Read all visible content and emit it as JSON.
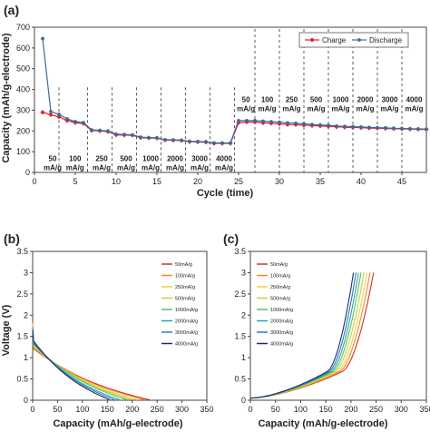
{
  "panels": {
    "a": {
      "label": "(a)"
    },
    "b": {
      "label": "(b)"
    },
    "c": {
      "label": "(c)"
    }
  },
  "chart_data": [
    {
      "id": "a",
      "type": "line",
      "xlabel": "Cycle (time)",
      "ylabel": "Capacity (mAh/g-electrode)",
      "xlim": [
        0,
        48
      ],
      "ylim": [
        0,
        700
      ],
      "xticks": [
        "0",
        "5",
        "10",
        "15",
        "20",
        "25",
        "30",
        "35",
        "40",
        "45"
      ],
      "yticks": [
        "0",
        "100",
        "200",
        "300",
        "400",
        "500",
        "600",
        "700"
      ],
      "legend_position": "top-right",
      "colors": {
        "charge": "#e0202a",
        "discharge": "#3c6a9a"
      },
      "dividers": [
        3,
        6.5,
        9.5,
        12.5,
        15.5,
        18.5,
        21.5,
        24.5,
        27,
        30,
        33,
        36,
        39,
        42,
        45
      ],
      "rate_labels_low": [
        "50",
        "mA/g",
        "100",
        "mA/g",
        "250",
        "mA/g",
        "500",
        "mA/g",
        "1000",
        "mA/g",
        "2000",
        "mA/g",
        "3000",
        "mA/g",
        "4000",
        "mA/g"
      ],
      "rate_labels_high": [
        "50",
        "mA/g",
        "100",
        "mA/g",
        "250",
        "mA/g",
        "500",
        "mA/g",
        "1000",
        "mA/g",
        "2000",
        "mA/g",
        "3000",
        "mA/g",
        "4000",
        "mA/g"
      ],
      "series": [
        {
          "name": "Charge",
          "x": [
            1,
            2,
            3,
            4,
            5,
            6,
            7,
            8,
            9,
            10,
            11,
            12,
            13,
            14,
            15,
            16,
            17,
            18,
            19,
            20,
            21,
            22,
            23,
            24,
            25,
            26,
            27,
            28,
            29,
            30,
            31,
            32,
            33,
            34,
            35,
            36,
            37,
            38,
            39,
            40,
            41,
            42,
            43,
            44,
            45,
            46,
            47,
            48
          ],
          "values": [
            290,
            278,
            268,
            250,
            240,
            236,
            202,
            200,
            197,
            181,
            180,
            179,
            168,
            166,
            165,
            156,
            155,
            154,
            148,
            147,
            146,
            140,
            140,
            140,
            240,
            243,
            243,
            239,
            237,
            234,
            231,
            230,
            228,
            226,
            224,
            222,
            220,
            218,
            217,
            216,
            214,
            213,
            212,
            211,
            210,
            209,
            208,
            207
          ]
        },
        {
          "name": "Discharge",
          "x": [
            1,
            2,
            3,
            4,
            5,
            6,
            7,
            8,
            9,
            10,
            11,
            12,
            13,
            14,
            15,
            16,
            17,
            18,
            19,
            20,
            21,
            22,
            23,
            24,
            25,
            26,
            27,
            28,
            29,
            30,
            31,
            32,
            33,
            34,
            35,
            36,
            37,
            38,
            39,
            40,
            41,
            42,
            43,
            44,
            45,
            46,
            47,
            48
          ],
          "values": [
            645,
            293,
            280,
            258,
            245,
            240,
            205,
            203,
            200,
            184,
            183,
            181,
            170,
            168,
            167,
            158,
            157,
            156,
            150,
            149,
            148,
            142,
            142,
            142,
            250,
            250,
            250,
            247,
            245,
            242,
            239,
            237,
            235,
            231,
            229,
            227,
            224,
            222,
            221,
            219,
            217,
            216,
            215,
            213,
            212,
            211,
            210,
            209
          ]
        }
      ]
    },
    {
      "id": "b",
      "type": "line",
      "xlabel": "Capacity (mAh/g-electrode)",
      "ylabel": "Voltage (V)",
      "xlim": [
        0,
        350
      ],
      "ylim": [
        0,
        3.5
      ],
      "xticks": [
        "0",
        "50",
        "100",
        "150",
        "200",
        "250",
        "300",
        "350"
      ],
      "yticks": [
        "0",
        "0.5",
        "1",
        "1.5",
        "2",
        "2.5",
        "3",
        "3.5"
      ],
      "legend_position": "top-right",
      "series": [
        {
          "name": "50mA/g",
          "color": "#d7301f",
          "xmax": 235,
          "v0": 1.2
        },
        {
          "name": "100mA/g",
          "color": "#ef8a2b",
          "xmax": 225,
          "v0": 1.22
        },
        {
          "name": "250mA/g",
          "color": "#f4cf3a",
          "xmax": 210,
          "v0": 1.25
        },
        {
          "name": "500mA/g",
          "color": "#b6d548",
          "xmax": 200,
          "v0": 1.28
        },
        {
          "name": "1000mA/g",
          "color": "#5cbf5c",
          "xmax": 190,
          "v0": 1.3
        },
        {
          "name": "2000mA/g",
          "color": "#25a8a0",
          "xmax": 175,
          "v0": 1.32
        },
        {
          "name": "3000mA/g",
          "color": "#3577b8",
          "xmax": 165,
          "v0": 1.35
        },
        {
          "name": "4000mA/g",
          "color": "#1c2a6e",
          "xmax": 155,
          "v0": 1.38
        }
      ]
    },
    {
      "id": "c",
      "type": "line",
      "xlabel": "Capacity (mAh/g-electrode)",
      "ylabel": "",
      "xlim": [
        0,
        350
      ],
      "ylim": [
        0,
        3.5
      ],
      "xticks": [
        "0",
        "50",
        "100",
        "150",
        "200",
        "250",
        "300",
        "350"
      ],
      "yticks": [
        "0",
        "0.5",
        "1",
        "1.5",
        "2",
        "2.5",
        "3",
        "3.5"
      ],
      "legend_position": "top-left",
      "series": [
        {
          "name": "50mA/g",
          "color": "#d7301f",
          "xmax": 245
        },
        {
          "name": "100mA/g",
          "color": "#ef8a2b",
          "xmax": 238
        },
        {
          "name": "250mA/g",
          "color": "#f4cf3a",
          "xmax": 232
        },
        {
          "name": "500mA/g",
          "color": "#b6d548",
          "xmax": 226
        },
        {
          "name": "1000mA/g",
          "color": "#5cbf5c",
          "xmax": 220
        },
        {
          "name": "2000mA/g",
          "color": "#25a8a0",
          "xmax": 215
        },
        {
          "name": "3000mA/g",
          "color": "#3577b8",
          "xmax": 210
        },
        {
          "name": "4000mA/g",
          "color": "#1c2a6e",
          "xmax": 205
        }
      ]
    }
  ]
}
